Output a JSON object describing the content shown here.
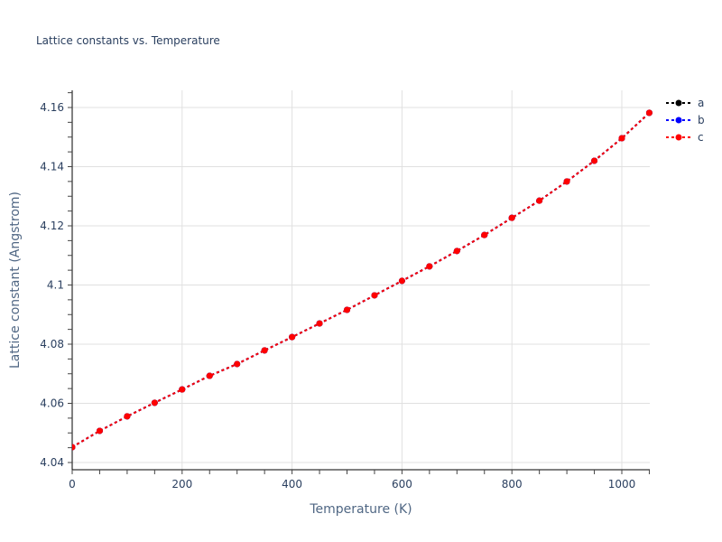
{
  "title": "Lattice constants vs. Temperature",
  "chart_data": {
    "type": "line",
    "title": "Lattice constants vs. Temperature",
    "xlabel": "Temperature (K)",
    "ylabel": "Lattice constant (Angstrom)",
    "xlim": [
      0,
      1050
    ],
    "ylim": [
      4.038,
      4.166
    ],
    "x_ticks": [
      0,
      200,
      400,
      600,
      800,
      1000
    ],
    "x_tick_labels": [
      "0",
      "200",
      "400",
      "600",
      "800",
      "1000"
    ],
    "y_ticks": [
      4.04,
      4.06,
      4.08,
      4.1,
      4.12,
      4.14,
      4.16
    ],
    "y_tick_labels": [
      "4.04",
      "4.06",
      "4.08",
      "4.1",
      "4.12",
      "4.14",
      "4.16"
    ],
    "grid": true,
    "legend_position": "top-right outside",
    "x": [
      0,
      50,
      100,
      150,
      200,
      250,
      300,
      350,
      400,
      450,
      500,
      550,
      600,
      650,
      700,
      750,
      800,
      850,
      900,
      950,
      1000,
      1050
    ],
    "series": [
      {
        "name": "a",
        "color": "#000000",
        "line": "dotted",
        "marker": "circle",
        "values": [
          4.0452,
          4.0507,
          4.0556,
          4.0602,
          4.0647,
          4.0693,
          4.0733,
          4.0779,
          4.0824,
          4.087,
          4.0916,
          4.0965,
          4.1014,
          4.1063,
          4.1115,
          4.1169,
          4.1227,
          4.1285,
          4.135,
          4.142,
          4.1496,
          4.1582
        ]
      },
      {
        "name": "b",
        "color": "#0000ff",
        "line": "dotted",
        "marker": "circle",
        "values": [
          4.0452,
          4.0507,
          4.0556,
          4.0602,
          4.0647,
          4.0693,
          4.0733,
          4.0779,
          4.0824,
          4.087,
          4.0916,
          4.0965,
          4.1014,
          4.1063,
          4.1115,
          4.1169,
          4.1227,
          4.1285,
          4.135,
          4.142,
          4.1496,
          4.1582
        ]
      },
      {
        "name": "c",
        "color": "#ff0000",
        "line": "dotted",
        "marker": "circle",
        "values": [
          4.0452,
          4.0507,
          4.0556,
          4.0602,
          4.0647,
          4.0693,
          4.0733,
          4.0779,
          4.0824,
          4.087,
          4.0916,
          4.0965,
          4.1014,
          4.1063,
          4.1115,
          4.1169,
          4.1227,
          4.1285,
          4.135,
          4.142,
          4.1496,
          4.1582
        ]
      }
    ]
  }
}
